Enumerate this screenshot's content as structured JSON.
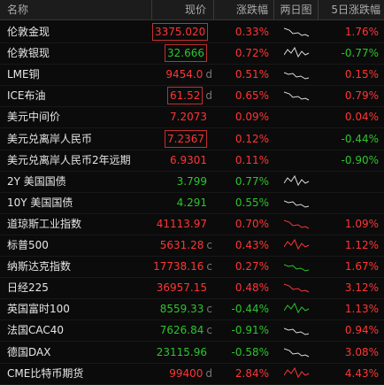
{
  "header": [
    "名称",
    "现价",
    "涨跌幅",
    "两日图",
    "5日涨跌幅"
  ],
  "rows": [
    {
      "name": "伦敦金现",
      "price": "3375.020",
      "change": "0.33%",
      "change_5d": "1.76%",
      "price_tone": "up",
      "change_tone": "up",
      "change_5d_tone": "up",
      "boxed": true
    },
    {
      "name": "伦敦银现",
      "price": "32.666",
      "change": "0.72%",
      "change_5d": "-0.77%",
      "price_tone": "down",
      "change_tone": "up",
      "change_5d_tone": "down",
      "boxed": true
    },
    {
      "name": "LME铜",
      "price": "9454.0",
      "flag": "d",
      "change": "0.51%",
      "change_5d": "0.15%",
      "price_tone": "up",
      "change_tone": "up",
      "change_5d_tone": "up",
      "boxed": false
    },
    {
      "name": "ICE布油",
      "price": "61.52",
      "flag": "d",
      "change": "0.65%",
      "change_5d": "0.79%",
      "price_tone": "up",
      "change_tone": "up",
      "change_5d_tone": "up",
      "boxed": true
    },
    {
      "name": "美元中间价",
      "price": "7.2073",
      "change": "0.09%",
      "change_5d": "0.04%",
      "price_tone": "up",
      "change_tone": "up",
      "change_5d_tone": "up",
      "boxed": false
    },
    {
      "name": "美元兑离岸人民币",
      "price": "7.2367",
      "change": "0.12%",
      "change_5d": "-0.44%",
      "price_tone": "up",
      "change_tone": "up",
      "change_5d_tone": "down",
      "boxed": true
    },
    {
      "name": "美元兑离岸人民币2年远期",
      "price": "6.9301",
      "change": "0.11%",
      "change_5d": "-0.90%",
      "price_tone": "up",
      "change_tone": "up",
      "change_5d_tone": "down",
      "boxed": false
    },
    {
      "name": "2Y 美国国债",
      "price": "3.799",
      "change": "0.77%",
      "price_tone": "down",
      "change_tone": "down",
      "boxed": false
    },
    {
      "name": "10Y 美国国债",
      "price": "4.291",
      "change": "0.55%",
      "price_tone": "down",
      "change_tone": "down",
      "boxed": false
    },
    {
      "name": "道琼斯工业指数",
      "price": "41113.97",
      "change": "0.70%",
      "change_5d": "1.09%",
      "price_tone": "up",
      "change_tone": "up",
      "change_5d_tone": "up",
      "boxed": false
    },
    {
      "name": "标普500",
      "price": "5631.28",
      "flag": "c",
      "change": "0.43%",
      "change_5d": "1.12%",
      "price_tone": "up",
      "change_tone": "up",
      "change_5d_tone": "up",
      "boxed": false
    },
    {
      "name": "纳斯达克指数",
      "price": "17738.16",
      "flag": "c",
      "change": "0.27%",
      "change_5d": "1.67%",
      "price_tone": "up",
      "change_tone": "up",
      "change_5d_tone": "up",
      "boxed": false
    },
    {
      "name": "日经225",
      "price": "36957.15",
      "change": "0.48%",
      "change_5d": "3.12%",
      "price_tone": "up",
      "change_tone": "up",
      "change_5d_tone": "up",
      "boxed": false
    },
    {
      "name": "英国富时100",
      "price": "8559.33",
      "flag": "c",
      "change": "-0.44%",
      "change_5d": "1.13%",
      "price_tone": "down",
      "change_tone": "down",
      "change_5d_tone": "up",
      "boxed": false
    },
    {
      "name": "法国CAC40",
      "price": "7626.84",
      "flag": "c",
      "change": "-0.91%",
      "change_5d": "0.94%",
      "price_tone": "down",
      "change_tone": "down",
      "change_5d_tone": "up",
      "boxed": false
    },
    {
      "name": "德国DAX",
      "price": "23115.96",
      "change": "-0.58%",
      "change_5d": "3.08%",
      "price_tone": "down",
      "change_tone": "down",
      "change_5d_tone": "up",
      "boxed": false
    },
    {
      "name": "CME比特币期货",
      "price": "99400",
      "flag": "d",
      "change": "2.84%",
      "change_5d": "4.43%",
      "price_tone": "up",
      "change_tone": "up",
      "change_5d_tone": "up",
      "boxed": false
    }
  ]
}
